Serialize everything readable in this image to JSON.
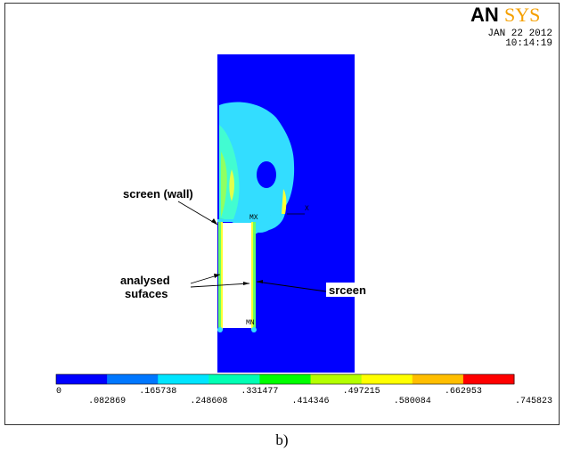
{
  "logo": {
    "part1": "AN",
    "part2": "SYS"
  },
  "date": "JAN 22 2012",
  "time": "10:14:19",
  "marker_mx": "MX",
  "marker_mn": "MN",
  "marker_x": "X",
  "annotations": {
    "screen_wall": "screen (wall)",
    "analysed_1": "analysed",
    "analysed_2": "sufaces",
    "screen_label": "srceen"
  },
  "legend": {
    "colors": [
      "#0000ff",
      "#0077ff",
      "#00e5ff",
      "#00ffb4",
      "#00ff00",
      "#b4ff00",
      "#ffff00",
      "#ffbe00",
      "#ff0000"
    ],
    "labels_top": [
      "0",
      ".165738",
      ".331477",
      ".497215",
      ".662953"
    ],
    "labels_bottom": [
      ".082869",
      ".248608",
      ".414346",
      ".580084",
      ".745823"
    ]
  },
  "caption": "b)",
  "colors": {
    "field": "#0000ff",
    "frame": "#333333"
  }
}
